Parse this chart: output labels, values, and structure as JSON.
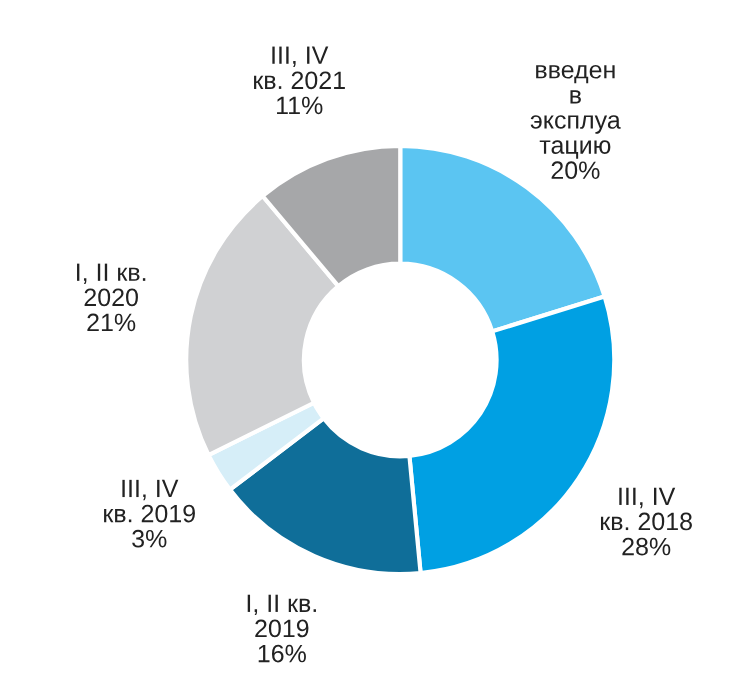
{
  "chart_data": {
    "type": "donut",
    "categories": [
      "введен\nв\nэксплуа\nтацию",
      "III, IV\nкв. 2018",
      "I, II кв.\n2019",
      "III, IV\nкв. 2019",
      "I, II кв.\n2020",
      "III, IV\nкв. 2021"
    ],
    "values": [
      20,
      28,
      16,
      3,
      21,
      11
    ],
    "value_labels": [
      "20%",
      "28%",
      "16%",
      "3%",
      "21%",
      "11%"
    ],
    "colors": [
      "#5bc5f2",
      "#00a0e3",
      "#0f6e99",
      "#d6eef8",
      "#d0d1d3",
      "#a6a7a9"
    ],
    "legend": false
  }
}
